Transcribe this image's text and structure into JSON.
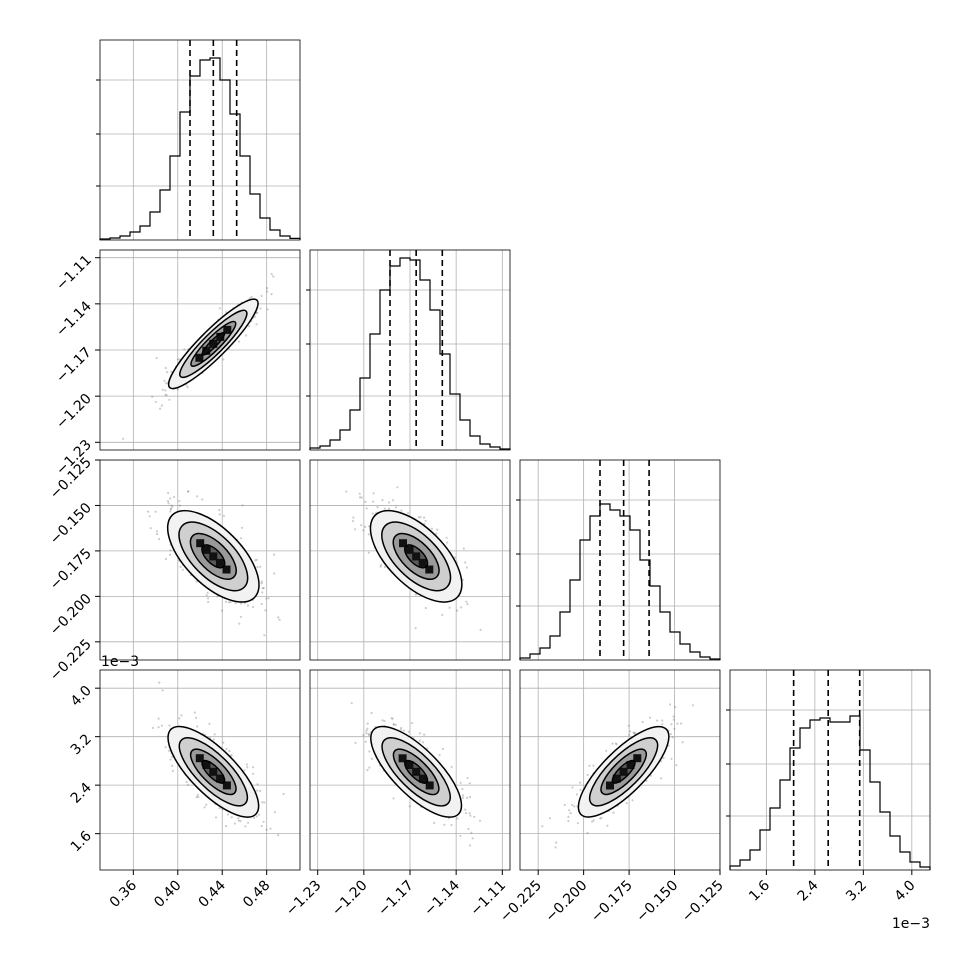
{
  "chart_data": {
    "type": "corner",
    "title": "",
    "params": [
      {
        "range": [
          0.33,
          0.51
        ],
        "ticks": [
          0.36,
          0.4,
          0.44,
          0.48
        ],
        "tick_labels": [
          "0.36",
          "0.40",
          "0.44",
          "0.48"
        ],
        "quantiles": [
          0.411,
          0.432,
          0.453
        ],
        "offset": ""
      },
      {
        "range": [
          -1.235,
          -1.105
        ],
        "ticks": [
          -1.23,
          -1.2,
          -1.17,
          -1.14,
          -1.11
        ],
        "tick_labels": [
          "−1.23",
          "−1.20",
          "−1.17",
          "−1.14",
          "−1.11"
        ],
        "quantiles": [
          -1.183,
          -1.166,
          -1.149
        ],
        "offset": ""
      },
      {
        "range": [
          -0.235,
          -0.125
        ],
        "ticks": [
          -0.225,
          -0.2,
          -0.175,
          -0.15,
          -0.125
        ],
        "tick_labels": [
          "−0.225",
          "−0.200",
          "−0.175",
          "−0.150",
          "−0.125"
        ],
        "quantiles": [
          -0.191,
          -0.178,
          -0.164
        ],
        "offset": ""
      },
      {
        "range": [
          1.0,
          4.3
        ],
        "ticks": [
          1.6,
          2.4,
          3.2,
          4.0
        ],
        "tick_labels": [
          "1.6",
          "2.4",
          "3.2",
          "4.0"
        ],
        "quantiles": [
          2.05,
          2.62,
          3.14
        ],
        "offset": "1e−3"
      }
    ],
    "histograms": [
      {
        "counts": [
          0.005,
          0.01,
          0.02,
          0.04,
          0.07,
          0.14,
          0.25,
          0.42,
          0.64,
          0.82,
          0.9,
          0.91,
          0.8,
          0.63,
          0.42,
          0.23,
          0.11,
          0.05,
          0.02,
          0.008
        ]
      },
      {
        "counts": [
          0.01,
          0.02,
          0.05,
          0.1,
          0.2,
          0.36,
          0.58,
          0.8,
          0.92,
          0.96,
          0.95,
          0.85,
          0.7,
          0.48,
          0.28,
          0.15,
          0.07,
          0.03,
          0.015,
          0.005
        ]
      },
      {
        "counts": [
          0.01,
          0.03,
          0.06,
          0.12,
          0.24,
          0.4,
          0.6,
          0.72,
          0.78,
          0.75,
          0.72,
          0.65,
          0.5,
          0.37,
          0.24,
          0.14,
          0.08,
          0.04,
          0.015,
          0.005
        ]
      },
      {
        "counts": [
          0.02,
          0.05,
          0.1,
          0.2,
          0.31,
          0.45,
          0.61,
          0.71,
          0.75,
          0.76,
          0.74,
          0.74,
          0.77,
          0.6,
          0.44,
          0.29,
          0.17,
          0.09,
          0.04,
          0.015
        ]
      }
    ],
    "pairs": [
      {
        "x": 0,
        "y": 1,
        "cx": 0.432,
        "cy": -1.166,
        "rho": 0.97
      },
      {
        "x": 0,
        "y": 2,
        "cx": 0.432,
        "cy": -0.178,
        "rho": -0.75
      },
      {
        "x": 1,
        "y": 2,
        "cx": -1.166,
        "cy": -0.178,
        "rho": -0.74
      },
      {
        "x": 0,
        "y": 3,
        "cx": 0.432,
        "cy": 2.62,
        "rho": -0.86
      },
      {
        "x": 1,
        "y": 3,
        "cx": -1.166,
        "cy": 2.62,
        "rho": -0.85
      },
      {
        "x": 2,
        "y": 3,
        "cx": -0.178,
        "cy": 2.62,
        "rho": 0.88
      }
    ],
    "contour_levels_sigma": [
      0.5,
      1.0,
      1.5,
      2.0
    ],
    "grid": true
  }
}
